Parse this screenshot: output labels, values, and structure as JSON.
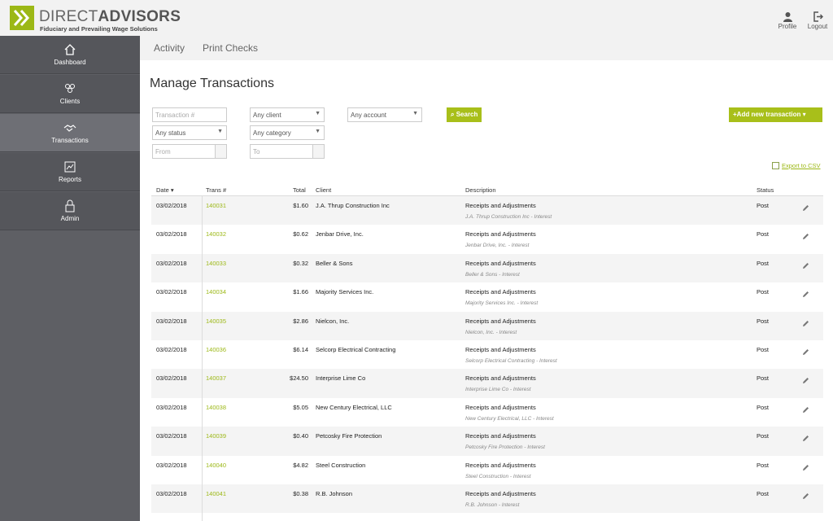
{
  "header": {
    "brand_light": "DIRECT",
    "brand_bold": "ADVISORS",
    "tagline": "Fiduciary and Prevailing Wage Solutions",
    "profile_label": "Profile",
    "logout_label": "Logout"
  },
  "sidebar": {
    "items": [
      {
        "label": "Dashboard",
        "icon": "home-icon"
      },
      {
        "label": "Clients",
        "icon": "users-icon"
      },
      {
        "label": "Transactions",
        "icon": "handshake-icon",
        "active": true
      },
      {
        "label": "Reports",
        "icon": "chart-icon"
      },
      {
        "label": "Admin",
        "icon": "lock-icon"
      }
    ]
  },
  "tabs": {
    "activity": "Activity",
    "print_checks": "Print Checks"
  },
  "page": {
    "title": "Manage Transactions"
  },
  "filters": {
    "transaction_placeholder": "Transaction #",
    "client": "Any client",
    "account": "Any account",
    "status": "Any status",
    "category": "Any category",
    "from_placeholder": "From",
    "to_placeholder": "To",
    "search_label": "Search",
    "add_label": "+Add new transaction",
    "export_label": "Export to CSV"
  },
  "table": {
    "headers": {
      "date": "Date ▾",
      "trans": "Trans #",
      "total": "Total",
      "client": "Client",
      "description": "Description",
      "status": "Status"
    },
    "rows": [
      {
        "date": "03/02/2018",
        "trans": "140031",
        "total": "$1.60",
        "client": "J.A. Thrup Construction Inc",
        "description": "Receipts and Adjustments",
        "sub": "J.A. Thrup Construction Inc - Interest",
        "status": "Post"
      },
      {
        "date": "03/02/2018",
        "trans": "140032",
        "total": "$0.62",
        "client": "Jenbar Drive, Inc.",
        "description": "Receipts and Adjustments",
        "sub": "Jenbar Drive, Inc. - Interest",
        "status": "Post"
      },
      {
        "date": "03/02/2018",
        "trans": "140033",
        "total": "$0.32",
        "client": "Beller & Sons",
        "description": "Receipts and Adjustments",
        "sub": "Beller & Sons - Interest",
        "status": "Post"
      },
      {
        "date": "03/02/2018",
        "trans": "140034",
        "total": "$1.66",
        "client": "Majority Services Inc.",
        "description": "Receipts and Adjustments",
        "sub": "Majority Services Inc. - Interest",
        "status": "Post"
      },
      {
        "date": "03/02/2018",
        "trans": "140035",
        "total": "$2.86",
        "client": "Nielcon, Inc.",
        "description": "Receipts and Adjustments",
        "sub": "Nielcon, Inc. - Interest",
        "status": "Post"
      },
      {
        "date": "03/02/2018",
        "trans": "140036",
        "total": "$6.14",
        "client": "Selcorp Electrical Contracting",
        "description": "Receipts and Adjustments",
        "sub": "Selcorp Electrical Contracting - Interest",
        "status": "Post"
      },
      {
        "date": "03/02/2018",
        "trans": "140037",
        "total": "$24.50",
        "client": "Interprise Lime Co",
        "description": "Receipts and Adjustments",
        "sub": "Interprise Lime Co - Interest",
        "status": "Post"
      },
      {
        "date": "03/02/2018",
        "trans": "140038",
        "total": "$5.05",
        "client": "New Century Electrical, LLC",
        "description": "Receipts and Adjustments",
        "sub": "New Century Electrical, LLC - Interest",
        "status": "Post"
      },
      {
        "date": "03/02/2018",
        "trans": "140039",
        "total": "$0.40",
        "client": "Petcosky Fire Protection",
        "description": "Receipts and Adjustments",
        "sub": "Petcosky Fire Protection - Interest",
        "status": "Post"
      },
      {
        "date": "03/02/2018",
        "trans": "140040",
        "total": "$4.82",
        "client": "Steel Construction",
        "description": "Receipts and Adjustments",
        "sub": "Steel Construction - Interest",
        "status": "Post"
      },
      {
        "date": "03/02/2018",
        "trans": "140041",
        "total": "$0.38",
        "client": "R.B. Johnson",
        "description": "Receipts and Adjustments",
        "sub": "R.B. Johnson - Interest",
        "status": "Post"
      }
    ]
  },
  "colors": {
    "accent": "#a8bf1a",
    "sidebar": "#5e5f64"
  }
}
